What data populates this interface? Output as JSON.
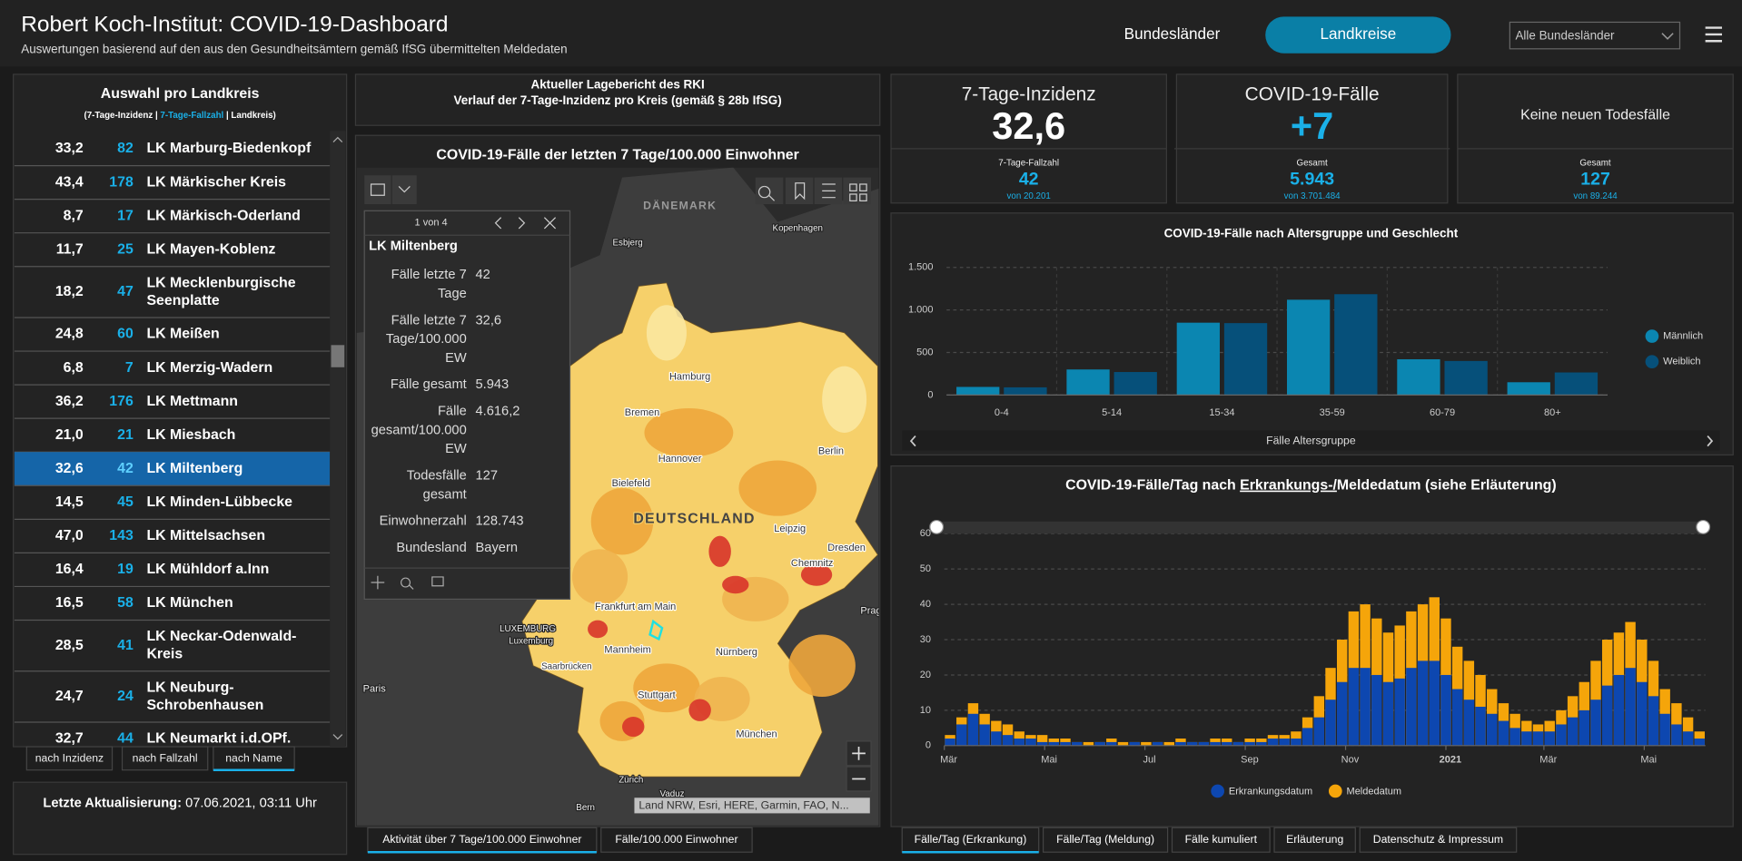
{
  "header": {
    "title": "Robert Koch-Institut: COVID-19-Dashboard",
    "subtitle": "Auswertungen basierend auf den aus den Gesundheitsämtern gemäß IfSG übermittelten Meldedaten",
    "tabs": [
      "Bundesländer",
      "Landkreise"
    ],
    "active_tab": 1,
    "dropdown": "Alle Bundesländer"
  },
  "list": {
    "title": "Auswahl pro Landkreis",
    "legend": [
      "(7-Tage-Inzidenz | ",
      "7-Tage-Fallzahl",
      " | Landkreis)"
    ],
    "rows": [
      {
        "incidence": "33,2",
        "cases": 82,
        "name": [
          "LK Marburg-Biedenkopf"
        ]
      },
      {
        "incidence": "43,4",
        "cases": 178,
        "name": [
          "LK Märkischer Kreis"
        ]
      },
      {
        "incidence": "8,7",
        "cases": 17,
        "name": [
          "LK Märkisch-Oderland"
        ]
      },
      {
        "incidence": "11,7",
        "cases": 25,
        "name": [
          "LK Mayen-Koblenz"
        ]
      },
      {
        "incidence": "18,2",
        "cases": 47,
        "name": [
          "LK Mecklenburgische",
          "Seenplatte"
        ]
      },
      {
        "incidence": "24,8",
        "cases": 60,
        "name": [
          "LK Meißen"
        ]
      },
      {
        "incidence": "6,8",
        "cases": 7,
        "name": [
          "LK Merzig-Wadern"
        ]
      },
      {
        "incidence": "36,2",
        "cases": 176,
        "name": [
          "LK Mettmann"
        ]
      },
      {
        "incidence": "21,0",
        "cases": 21,
        "name": [
          "LK Miesbach"
        ]
      },
      {
        "incidence": "32,6",
        "cases": 42,
        "name": [
          "LK Miltenberg"
        ]
      },
      {
        "incidence": "14,5",
        "cases": 45,
        "name": [
          "LK Minden-Lübbecke"
        ]
      },
      {
        "incidence": "47,0",
        "cases": 143,
        "name": [
          "LK Mittelsachsen"
        ]
      },
      {
        "incidence": "16,4",
        "cases": 19,
        "name": [
          "LK Mühldorf a.Inn"
        ]
      },
      {
        "incidence": "16,5",
        "cases": 58,
        "name": [
          "LK München"
        ]
      },
      {
        "incidence": "28,5",
        "cases": 41,
        "name": [
          "LK Neckar-Odenwald-",
          "Kreis"
        ]
      },
      {
        "incidence": "24,7",
        "cases": 24,
        "name": [
          "LK Neuburg-",
          "Schrobenhausen"
        ]
      },
      {
        "incidence": "32,7",
        "cases": 44,
        "name": [
          "LK Neumarkt i.d.OPf."
        ]
      }
    ],
    "selected": 9,
    "sort_buttons": [
      "nach Inzidenz",
      "nach Fallzahl",
      "nach Name"
    ],
    "active_sort": 2
  },
  "update": {
    "label": "Letzte Aktualisierung: ",
    "value": "07.06.2021, 03:11 Uhr"
  },
  "report": {
    "line1": "Aktueller Lagebericht des RKI",
    "line2": "Verlauf der 7-Tage-Inzidenz pro Kreis (gemäß § 28b IfSG)"
  },
  "map": {
    "title": "COVID-19-Fälle der letzten 7 Tage/100.000 Einwohner",
    "places": [
      "DÄNEMARK",
      "Esbjerg",
      "Kopenhagen",
      "Hamburg",
      "Bremen",
      "Hannover",
      "Berlin",
      "Bielefeld",
      "DEUTSCHLAND",
      "Leipzig",
      "Dresden",
      "Chemnitz",
      "Frankfurt am Main",
      "Mannheim",
      "Nürnberg",
      "Saarbrücken",
      "LUXEMBURG",
      "Luxemburg",
      "Stuttgart",
      "München",
      "Paris",
      "Prag",
      "Zürich",
      "Vaduz",
      "Bern"
    ],
    "attribution": "Land NRW, Esri, HERE, Garmin, FAO, N...",
    "popup": {
      "pager": "1 von 4",
      "title": "LK Miltenberg",
      "fields": [
        {
          "label": [
            "Fälle letzte 7",
            "Tage"
          ],
          "value": "42"
        },
        {
          "label": [
            "Fälle letzte 7",
            "Tage/100.000",
            "EW"
          ],
          "value": "32,6"
        },
        {
          "label": [
            "Fälle gesamt"
          ],
          "value": "5.943"
        },
        {
          "label": [
            "Fälle",
            "gesamt/100.000",
            "EW"
          ],
          "value": "4.616,2"
        },
        {
          "label": [
            "Todesfälle",
            "gesamt"
          ],
          "value": "127"
        },
        {
          "label": [
            "Einwohnerzahl"
          ],
          "value": "128.743"
        },
        {
          "label": [
            "Bundesland"
          ],
          "value": "Bayern"
        }
      ]
    },
    "tabs": [
      "Aktivität über 7 Tage/100.000 Einwohner",
      "Fälle/100.000 Einwohner"
    ],
    "active_tab": 0
  },
  "kpis": [
    {
      "title": "7-Tage-Inzidenz",
      "value": "32,6",
      "sub_label": "7-Tage-Fallzahl",
      "sub_value": "42",
      "sub_total": "von 20.201"
    },
    {
      "title": "COVID-19-Fälle",
      "value": "+7",
      "sub_label": "Gesamt",
      "sub_value": "5.943",
      "sub_total": "von 3.701.484"
    },
    {
      "title": "Keine neuen Todesfälle",
      "sub_label": "Gesamt",
      "sub_value": "127",
      "sub_total": "von 89.244"
    }
  ],
  "chart_data": [
    {
      "type": "bar",
      "mode": "grouped",
      "title": "COVID-19-Fälle nach Altersgruppe und Geschlecht",
      "x_label": "Fälle Altersgruppe",
      "categories": [
        "0-4",
        "5-14",
        "15-34",
        "35-59",
        "60-79",
        "80+"
      ],
      "series": [
        {
          "name": "Männlich",
          "color": "#0b86b1",
          "values": [
            95,
            300,
            850,
            1120,
            420,
            150
          ]
        },
        {
          "name": "Weiblich",
          "color": "#06507a",
          "values": [
            90,
            270,
            845,
            1185,
            400,
            265
          ]
        }
      ],
      "ylim": [
        0,
        1500
      ],
      "yticks": [
        0,
        500,
        {
          "value": 1000,
          "label": "1.000"
        },
        {
          "value": 1500,
          "label": "1.500"
        }
      ],
      "grid": true,
      "legend": "right"
    },
    {
      "type": "bar",
      "mode": "overlaid",
      "title_parts": [
        "COVID-19-Fälle/Tag nach ",
        "Erkrankungs-/",
        "Meldedatum (siehe Erläuterung)"
      ],
      "series": [
        {
          "name": "Erkrankungsdatum",
          "color": "#0d47b0",
          "values": [
            2,
            6,
            9,
            6,
            4,
            3,
            2,
            2,
            1,
            1,
            1,
            1,
            0,
            1,
            1,
            0,
            1,
            0,
            1,
            0,
            1,
            1,
            1,
            1,
            1,
            1,
            1,
            1,
            2,
            2,
            2,
            5,
            8,
            13,
            18,
            22,
            22,
            20,
            18,
            19,
            22,
            24,
            24,
            20,
            16,
            13,
            11,
            9,
            7,
            5,
            4,
            4,
            4,
            6,
            8,
            10,
            13,
            17,
            20,
            22,
            18,
            14,
            9,
            6,
            4,
            2
          ]
        },
        {
          "name": "Meldedatum",
          "color": "#f5a50a",
          "values": [
            3,
            8,
            12,
            9,
            7,
            6,
            4,
            3,
            3,
            2,
            2,
            1,
            1,
            1,
            2,
            1,
            1,
            1,
            1,
            1,
            2,
            1,
            1,
            2,
            2,
            1,
            2,
            2,
            3,
            3,
            4,
            8,
            14,
            22,
            30,
            38,
            40,
            36,
            32,
            34,
            38,
            40,
            42,
            36,
            28,
            24,
            20,
            16,
            12,
            9,
            7,
            6,
            7,
            10,
            14,
            18,
            24,
            30,
            32,
            35,
            30,
            24,
            16,
            12,
            8,
            4
          ]
        }
      ],
      "xlim": [
        0,
        66
      ],
      "xticks": [
        {
          "value": 0,
          "label": "Mär"
        },
        {
          "value": 8.7,
          "label": "Mai"
        },
        {
          "value": 17.4,
          "label": "Jul"
        },
        {
          "value": 26.1,
          "label": "Sep"
        },
        {
          "value": 34.8,
          "label": "Nov"
        },
        {
          "value": 43.5,
          "label": "2021"
        },
        {
          "value": 52,
          "label": "Mär"
        },
        {
          "value": 60.7,
          "label": "Mai"
        }
      ],
      "ylim": [
        0,
        60
      ],
      "yticks": [
        0,
        10,
        20,
        30,
        40,
        50,
        60
      ],
      "grid": true,
      "legend": "bottom"
    }
  ],
  "chart_tabs": {
    "tabs": [
      "Fälle/Tag (Erkrankung)",
      "Fälle/Tag (Meldung)",
      "Fälle kumuliert",
      "Erläuterung",
      "Datenschutz & Impressum"
    ],
    "active_tab": 0
  }
}
